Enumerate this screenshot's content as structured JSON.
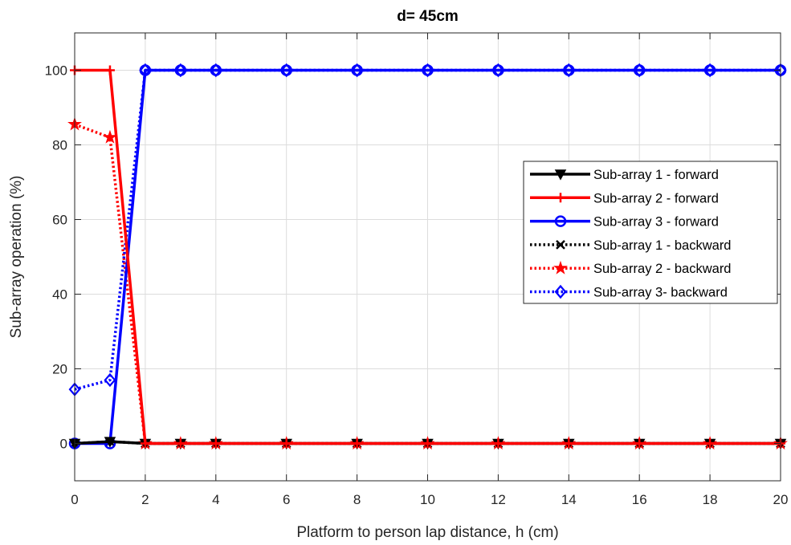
{
  "chart_data": {
    "type": "line",
    "title": "d= 45cm",
    "xlabel": "Platform to person lap distance, h (cm)",
    "ylabel": "Sub-array operation (%)",
    "xlim": [
      0,
      20
    ],
    "ylim": [
      -10,
      110
    ],
    "xticks": [
      0,
      2,
      4,
      6,
      8,
      10,
      12,
      14,
      16,
      18,
      20
    ],
    "yticks": [
      0,
      20,
      40,
      60,
      80,
      100
    ],
    "grid": true,
    "legend_position": "center-right",
    "x": [
      0,
      1,
      2,
      3,
      4,
      6,
      8,
      10,
      12,
      14,
      16,
      18,
      20
    ],
    "series": [
      {
        "name": "Sub-array 1 - forward",
        "color": "#000000",
        "dash": "solid",
        "marker": "triangle-down",
        "values": [
          0,
          0.5,
          0,
          0,
          0,
          0,
          0,
          0,
          0,
          0,
          0,
          0,
          0
        ]
      },
      {
        "name": "Sub-array 2 - forward",
        "color": "#ff0000",
        "dash": "solid",
        "marker": "plus",
        "values": [
          100,
          100,
          0,
          0,
          0,
          0,
          0,
          0,
          0,
          0,
          0,
          0,
          0
        ]
      },
      {
        "name": "Sub-array 3 - forward",
        "color": "#0000ff",
        "dash": "solid",
        "marker": "circle",
        "values": [
          0,
          0,
          100,
          100,
          100,
          100,
          100,
          100,
          100,
          100,
          100,
          100,
          100
        ]
      },
      {
        "name": "Sub-array 1 - backward",
        "color": "#000000",
        "dash": "dotted",
        "marker": "x",
        "values": [
          0,
          0.5,
          0,
          0,
          0,
          0,
          0,
          0,
          0,
          0,
          0,
          0,
          0
        ]
      },
      {
        "name": "Sub-array 2 - backward",
        "color": "#ff0000",
        "dash": "dotted",
        "marker": "star",
        "values": [
          85.5,
          82,
          0,
          0,
          0,
          0,
          0,
          0,
          0,
          0,
          0,
          0,
          0
        ]
      },
      {
        "name": "Sub-array 3- backward",
        "color": "#0000ff",
        "dash": "dotted",
        "marker": "diamond",
        "values": [
          14.5,
          17,
          100,
          100,
          100,
          100,
          100,
          100,
          100,
          100,
          100,
          100,
          100
        ]
      }
    ]
  }
}
